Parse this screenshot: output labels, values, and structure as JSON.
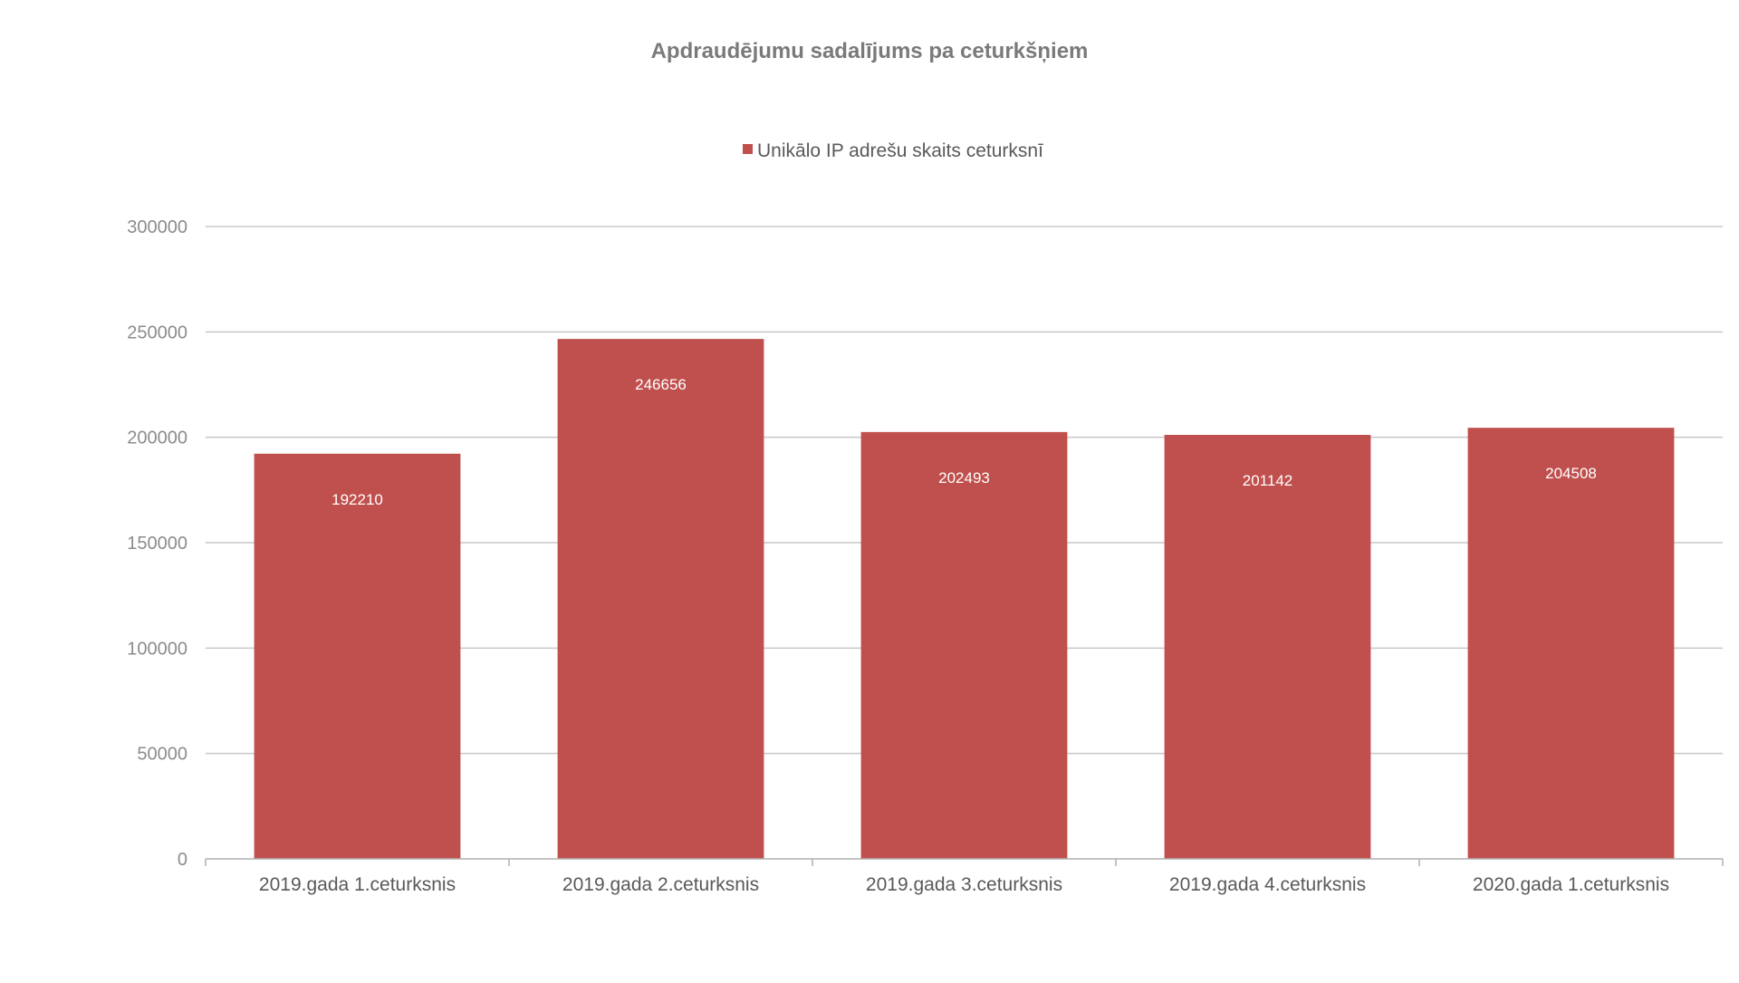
{
  "chart_data": {
    "type": "bar",
    "title": "Apdraudējumu sadalījums pa ceturkšņiem",
    "categories": [
      "2019.gada 1.ceturksnis",
      "2019.gada 2.ceturksnis",
      "2019.gada 3.ceturksnis",
      "2019.gada 4.ceturksnis",
      "2020.gada 1.ceturksnis"
    ],
    "series": [
      {
        "name": "Unikālo IP adrešu skaits ceturksnī",
        "values": [
          192210,
          246656,
          202493,
          201142,
          204508
        ],
        "color": "#c0504d"
      }
    ],
    "ylim": [
      0,
      300000
    ],
    "yticks": [
      0,
      50000,
      100000,
      150000,
      200000,
      250000,
      300000
    ],
    "xlabel": "",
    "ylabel": "",
    "grid": true,
    "legend_position": "top",
    "data_labels": "inside-top"
  }
}
